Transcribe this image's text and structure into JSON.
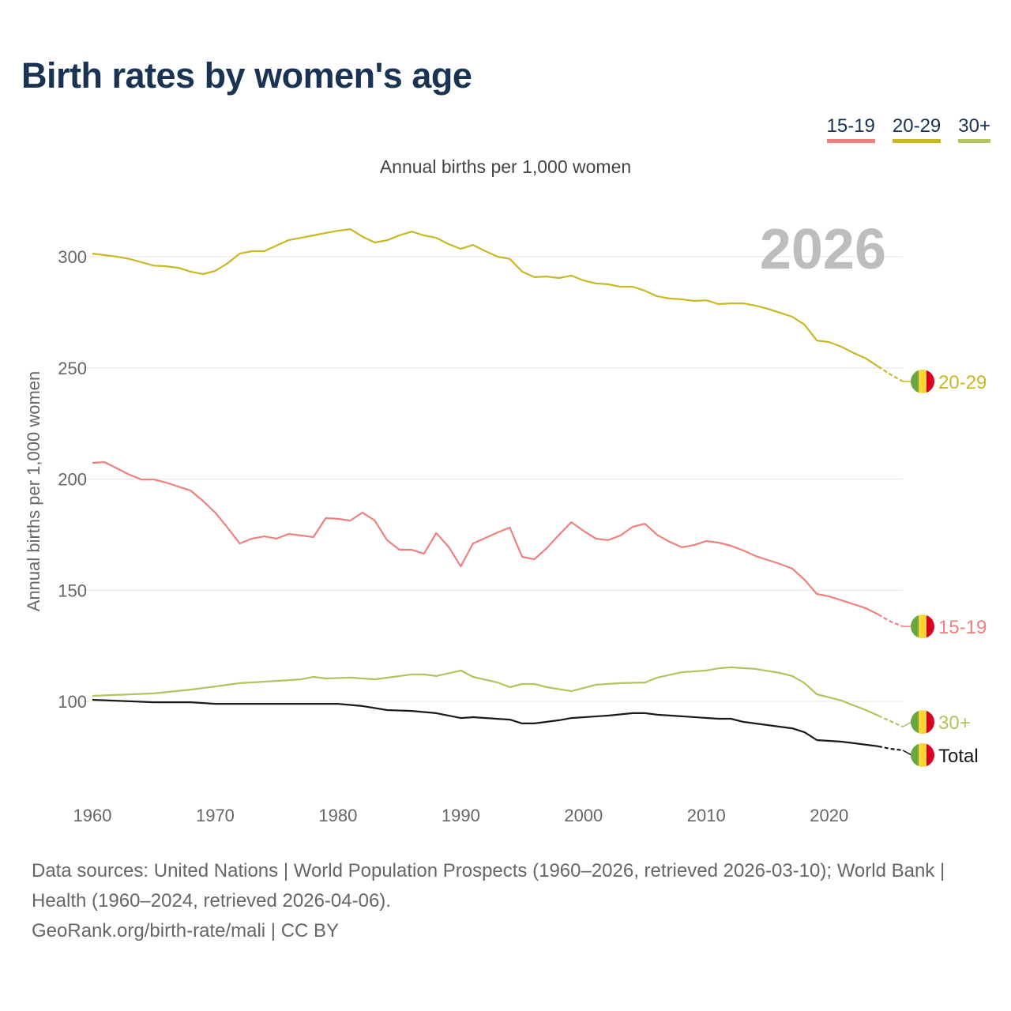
{
  "title": "Birth rates by women's age",
  "subtitle": "Annual births per 1,000 women",
  "watermark_year": "2026",
  "footer": {
    "sources": "Data sources: United Nations | World Population Prospects (1960–2026, retrieved 2026-03-10); World Bank | Health (1960–2024, retrieved 2026-04-06).",
    "credit": "GeoRank.org/birth-rate/mali | CC BY"
  },
  "legend": [
    {
      "label": "15-19",
      "color": "#f08080"
    },
    {
      "label": "20-29",
      "color": "#c9b822"
    },
    {
      "label": "30+",
      "color": "#b1c45e"
    }
  ],
  "flag_colors": [
    "#6aa83f",
    "#fcd535",
    "#d90024"
  ],
  "chart_data": {
    "type": "line",
    "title": "Birth rates by women's age",
    "xlabel": "",
    "ylabel": "Annual births per 1,000 women",
    "xlim": [
      1960,
      2026
    ],
    "ylim": [
      72,
      325
    ],
    "xticks": [
      1960,
      1970,
      1980,
      1990,
      2000,
      2010,
      2020
    ],
    "yticks": [
      100,
      150,
      200,
      250,
      300
    ],
    "grid": true,
    "legend_position": "top-right",
    "projection_from": 2024,
    "series": [
      {
        "name": "20-29",
        "label": "20-29",
        "color": "#c9b822",
        "points": [
          [
            1960,
            301.4
          ],
          [
            1961,
            300.7
          ],
          [
            1962,
            300
          ],
          [
            1963,
            299
          ],
          [
            1964,
            297.5
          ],
          [
            1965,
            296
          ],
          [
            1966,
            295.7
          ],
          [
            1967,
            295
          ],
          [
            1968,
            293.3
          ],
          [
            1969,
            292.2
          ],
          [
            1970,
            293.6
          ],
          [
            1971,
            297
          ],
          [
            1972,
            301.4
          ],
          [
            1973,
            302.5
          ],
          [
            1974,
            302.5
          ],
          [
            1975,
            305
          ],
          [
            1976,
            307.5
          ],
          [
            1977,
            308.5
          ],
          [
            1978,
            309.6
          ],
          [
            1979,
            310.7
          ],
          [
            1980,
            311.7
          ],
          [
            1981,
            312.4
          ],
          [
            1982,
            309
          ],
          [
            1983,
            306.4
          ],
          [
            1984,
            307.4
          ],
          [
            1985,
            309.6
          ],
          [
            1986,
            311.3
          ],
          [
            1987,
            309.6
          ],
          [
            1988,
            308.5
          ],
          [
            1989,
            305.7
          ],
          [
            1990,
            303.5
          ],
          [
            1991,
            305.3
          ],
          [
            1992,
            302.5
          ],
          [
            1993,
            300
          ],
          [
            1994,
            299
          ],
          [
            1995,
            293.3
          ],
          [
            1996,
            290.8
          ],
          [
            1997,
            291.1
          ],
          [
            1998,
            290.4
          ],
          [
            1999,
            291.5
          ],
          [
            2000,
            289.3
          ],
          [
            2001,
            288
          ],
          [
            2002,
            287.6
          ],
          [
            2003,
            286.5
          ],
          [
            2004,
            286.5
          ],
          [
            2005,
            284.7
          ],
          [
            2006,
            282.2
          ],
          [
            2007,
            281.2
          ],
          [
            2008,
            280.8
          ],
          [
            2009,
            280.1
          ],
          [
            2010,
            280.4
          ],
          [
            2011,
            278.7
          ],
          [
            2012,
            279
          ],
          [
            2013,
            279
          ],
          [
            2014,
            278
          ],
          [
            2015,
            276.6
          ],
          [
            2016,
            274.8
          ],
          [
            2017,
            273
          ],
          [
            2018,
            269.4
          ],
          [
            2019,
            262.3
          ],
          [
            2020,
            261.6
          ],
          [
            2021,
            259.5
          ],
          [
            2022,
            256.7
          ],
          [
            2023,
            254.2
          ],
          [
            2024,
            250.6
          ],
          [
            2025,
            247
          ],
          [
            2026,
            243.9
          ]
        ]
      },
      {
        "name": "15-19",
        "label": "15-19",
        "color": "#f08080",
        "points": [
          [
            1960,
            207.3
          ],
          [
            1961,
            207.6
          ],
          [
            1962,
            204.8
          ],
          [
            1963,
            202
          ],
          [
            1964,
            199.8
          ],
          [
            1965,
            199.8
          ],
          [
            1966,
            198.4
          ],
          [
            1967,
            196.6
          ],
          [
            1968,
            194.8
          ],
          [
            1969,
            190.2
          ],
          [
            1970,
            184.9
          ],
          [
            1971,
            178.2
          ],
          [
            1972,
            171
          ],
          [
            1973,
            173.2
          ],
          [
            1974,
            174.2
          ],
          [
            1975,
            173.2
          ],
          [
            1976,
            175.3
          ],
          [
            1977,
            174.6
          ],
          [
            1978,
            173.9
          ],
          [
            1979,
            182.4
          ],
          [
            1980,
            182.1
          ],
          [
            1981,
            181.3
          ],
          [
            1982,
            184.9
          ],
          [
            1983,
            181.3
          ],
          [
            1984,
            172.5
          ],
          [
            1985,
            168.2
          ],
          [
            1986,
            168.2
          ],
          [
            1987,
            166.4
          ],
          [
            1988,
            175.7
          ],
          [
            1989,
            169.6
          ],
          [
            1990,
            160.7
          ],
          [
            1991,
            171
          ],
          [
            1992,
            173.5
          ],
          [
            1993,
            176
          ],
          [
            1994,
            178.2
          ],
          [
            1995,
            165
          ],
          [
            1996,
            163.9
          ],
          [
            1997,
            168.9
          ],
          [
            1998,
            174.9
          ],
          [
            1999,
            180.6
          ],
          [
            2000,
            176.7
          ],
          [
            2001,
            173.2
          ],
          [
            2002,
            172.5
          ],
          [
            2003,
            174.6
          ],
          [
            2004,
            178.5
          ],
          [
            2005,
            179.9
          ],
          [
            2006,
            174.9
          ],
          [
            2007,
            171.8
          ],
          [
            2008,
            169.3
          ],
          [
            2009,
            170.3
          ],
          [
            2010,
            172.1
          ],
          [
            2011,
            171.4
          ],
          [
            2012,
            170
          ],
          [
            2013,
            167.9
          ],
          [
            2014,
            165.4
          ],
          [
            2015,
            163.6
          ],
          [
            2016,
            161.8
          ],
          [
            2017,
            159.7
          ],
          [
            2018,
            154.7
          ],
          [
            2019,
            148.3
          ],
          [
            2020,
            147.2
          ],
          [
            2021,
            145.5
          ],
          [
            2022,
            143.7
          ],
          [
            2023,
            141.9
          ],
          [
            2024,
            139.1
          ],
          [
            2025,
            135.9
          ],
          [
            2026,
            133.7
          ]
        ]
      },
      {
        "name": "30+",
        "label": "30+",
        "color": "#b1c45e",
        "points": [
          [
            1960,
            102.5
          ],
          [
            1965,
            103.6
          ],
          [
            1968,
            105.3
          ],
          [
            1970,
            106.7
          ],
          [
            1972,
            108.2
          ],
          [
            1975,
            109.2
          ],
          [
            1977,
            109.9
          ],
          [
            1978,
            111
          ],
          [
            1979,
            110.3
          ],
          [
            1981,
            110.7
          ],
          [
            1983,
            109.9
          ],
          [
            1986,
            112.1
          ],
          [
            1987,
            112.1
          ],
          [
            1988,
            111.4
          ],
          [
            1990,
            113.9
          ],
          [
            1991,
            111
          ],
          [
            1993,
            108.5
          ],
          [
            1994,
            106.4
          ],
          [
            1995,
            107.8
          ],
          [
            1996,
            107.8
          ],
          [
            1997,
            106.4
          ],
          [
            1999,
            104.6
          ],
          [
            2000,
            106
          ],
          [
            2001,
            107.5
          ],
          [
            2003,
            108.2
          ],
          [
            2005,
            108.5
          ],
          [
            2006,
            110.7
          ],
          [
            2008,
            113.1
          ],
          [
            2010,
            113.9
          ],
          [
            2011,
            114.9
          ],
          [
            2012,
            115.3
          ],
          [
            2014,
            114.6
          ],
          [
            2016,
            112.8
          ],
          [
            2017,
            111.4
          ],
          [
            2018,
            108.2
          ],
          [
            2019,
            103.2
          ],
          [
            2020,
            101.8
          ],
          [
            2021,
            100.4
          ],
          [
            2022,
            98.2
          ],
          [
            2023,
            96.1
          ],
          [
            2024,
            93.6
          ],
          [
            2025,
            91.1
          ],
          [
            2026,
            88.6
          ]
        ]
      },
      {
        "name": "Total",
        "label": "Total",
        "color": "#1a1a1a",
        "points": [
          [
            1960,
            100.7
          ],
          [
            1965,
            99.6
          ],
          [
            1968,
            99.6
          ],
          [
            1970,
            98.9
          ],
          [
            1975,
            98.9
          ],
          [
            1978,
            98.9
          ],
          [
            1980,
            98.9
          ],
          [
            1982,
            97.9
          ],
          [
            1984,
            96.1
          ],
          [
            1986,
            95.7
          ],
          [
            1988,
            94.7
          ],
          [
            1990,
            92.5
          ],
          [
            1991,
            92.9
          ],
          [
            1994,
            91.8
          ],
          [
            1995,
            90.1
          ],
          [
            1996,
            90.1
          ],
          [
            1998,
            91.5
          ],
          [
            1999,
            92.5
          ],
          [
            2002,
            93.6
          ],
          [
            2004,
            94.7
          ],
          [
            2005,
            94.7
          ],
          [
            2006,
            94
          ],
          [
            2008,
            93.3
          ],
          [
            2011,
            92.2
          ],
          [
            2012,
            92.2
          ],
          [
            2013,
            90.8
          ],
          [
            2016,
            88.6
          ],
          [
            2017,
            87.9
          ],
          [
            2018,
            86.1
          ],
          [
            2019,
            82.6
          ],
          [
            2021,
            81.9
          ],
          [
            2022,
            81.2
          ],
          [
            2024,
            79.8
          ],
          [
            2025,
            78.7
          ],
          [
            2026,
            78
          ]
        ]
      }
    ]
  }
}
